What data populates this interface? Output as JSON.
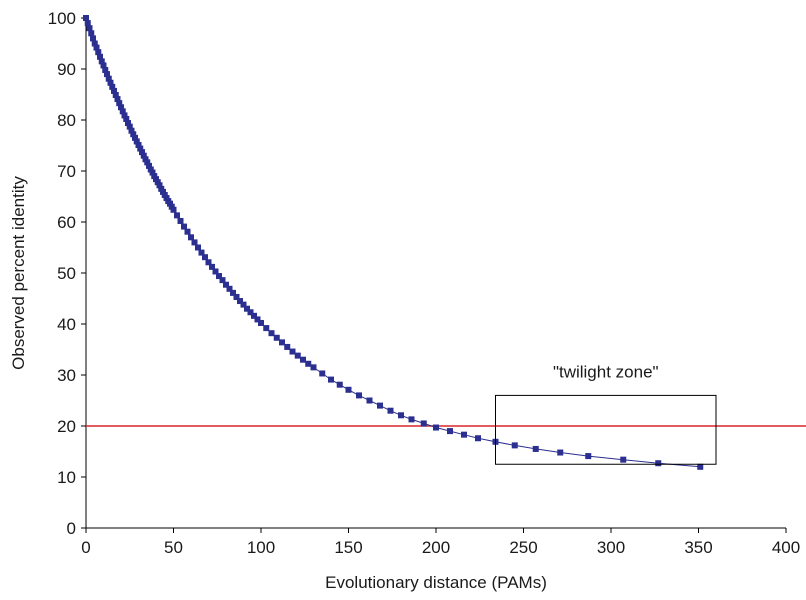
{
  "chart_data": {
    "type": "line",
    "title": "",
    "xlabel": "Evolutionary distance (PAMs)",
    "ylabel": "Observed percent identity",
    "xlim": [
      0,
      400
    ],
    "ylim": [
      0,
      100
    ],
    "x_ticks": [
      "0",
      "50",
      "100",
      "150",
      "200",
      "250",
      "300",
      "350",
      "400"
    ],
    "y_ticks": [
      "0",
      "10",
      "20",
      "30",
      "40",
      "50",
      "60",
      "70",
      "80",
      "90",
      "100"
    ],
    "grid": false,
    "legend": "none",
    "series": [
      {
        "color": "#2b2f8f",
        "marker": "square",
        "x": [
          0,
          1,
          2,
          3,
          4,
          5,
          6,
          7,
          8,
          9,
          10,
          11,
          12,
          13,
          14,
          15,
          16,
          17,
          18,
          19,
          20,
          21,
          22,
          23,
          24,
          25,
          26,
          27,
          28,
          29,
          30,
          31,
          32,
          33,
          34,
          35,
          36,
          37,
          38,
          39,
          40,
          41,
          42,
          43,
          44,
          45,
          46,
          47,
          48,
          49,
          50,
          52,
          54,
          56,
          58,
          60,
          62,
          64,
          66,
          68,
          70,
          72,
          74,
          76,
          78,
          80,
          82,
          84,
          86,
          88,
          90,
          92,
          94,
          96,
          98,
          100,
          103,
          106,
          109,
          112,
          115,
          118,
          121,
          124,
          127,
          130,
          135,
          140,
          145,
          150,
          156,
          162,
          168,
          174,
          180,
          186,
          193,
          200,
          208,
          216,
          224,
          234,
          245,
          257,
          271,
          287,
          307,
          327,
          351
        ],
        "values": [
          100,
          99,
          98,
          97,
          96,
          95,
          94.2,
          93.3,
          92.4,
          91.5,
          90.7,
          89.8,
          89,
          88.1,
          87.3,
          86.5,
          85.7,
          84.9,
          84.1,
          83.3,
          82.5,
          81.7,
          80.9,
          80.2,
          79.4,
          78.7,
          77.9,
          77.2,
          76.5,
          75.8,
          75.1,
          74.4,
          73.7,
          73,
          72.3,
          71.7,
          71,
          70.3,
          69.7,
          69,
          68.4,
          67.8,
          67.2,
          66.5,
          65.9,
          65.3,
          64.7,
          64.1,
          63.6,
          63,
          62.4,
          61.3,
          60.2,
          59.1,
          58.1,
          57,
          56,
          55,
          54,
          53.1,
          52.1,
          51.2,
          50.3,
          49.4,
          48.6,
          47.7,
          46.9,
          46.1,
          45.3,
          44.5,
          43.8,
          43,
          42.3,
          41.6,
          40.9,
          40.2,
          39.2,
          38.2,
          37.3,
          36.4,
          35.5,
          34.6,
          33.8,
          33,
          32.2,
          31.5,
          30.3,
          29.1,
          28.1,
          27.1,
          26,
          25,
          24,
          23,
          22.1,
          21.3,
          20.5,
          19.7,
          19,
          18.3,
          17.6,
          16.9,
          16.2,
          15.5,
          14.8,
          14.1,
          13.4,
          12.7,
          12
        ]
      }
    ],
    "threshold": {
      "y": 20,
      "color": "#d9262c"
    },
    "annotation": {
      "text": "\"twilight zone\"",
      "box_x": [
        234,
        360
      ],
      "box_y": [
        12.5,
        26
      ]
    }
  }
}
